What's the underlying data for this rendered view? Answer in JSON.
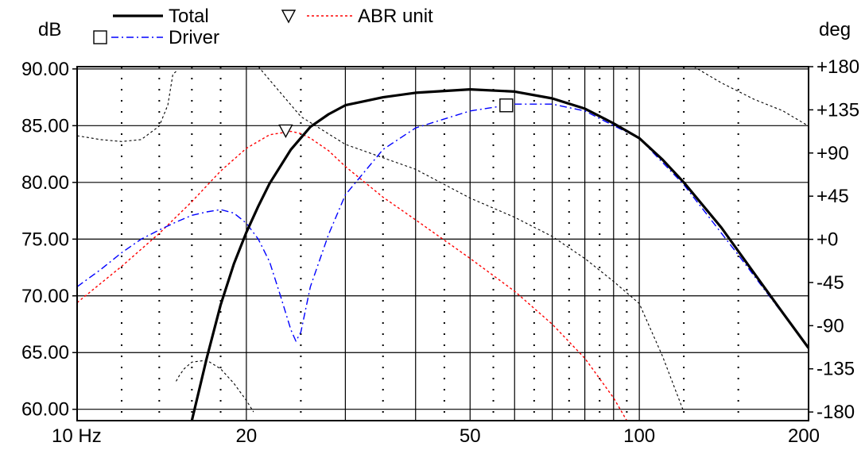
{
  "chart_data": {
    "type": "line",
    "x_scale": "log",
    "xlim": [
      10,
      200
    ],
    "ylim": [
      59,
      90.2
    ],
    "y2lim": [
      -189,
      180
    ],
    "left_unit": "dB",
    "right_unit": "deg",
    "x_ticks": [
      {
        "value": 10,
        "label": "10 Hz"
      },
      {
        "value": 20,
        "label": "20"
      },
      {
        "value": 50,
        "label": "50"
      },
      {
        "value": 100,
        "label": "100"
      },
      {
        "value": 200,
        "label": "200"
      }
    ],
    "y_ticks": [
      {
        "value": 90,
        "label": "90.00"
      },
      {
        "value": 85,
        "label": "85.00"
      },
      {
        "value": 80,
        "label": "80.00"
      },
      {
        "value": 75,
        "label": "75.00"
      },
      {
        "value": 70,
        "label": "70.00"
      },
      {
        "value": 65,
        "label": "65.00"
      },
      {
        "value": 60,
        "label": "60.00"
      }
    ],
    "y2_ticks": [
      {
        "value": 180,
        "label": "+180"
      },
      {
        "value": 135,
        "label": "+135"
      },
      {
        "value": 90,
        "label": "+90"
      },
      {
        "value": 45,
        "label": "+45"
      },
      {
        "value": 0,
        "label": "+0"
      },
      {
        "value": -45,
        "label": "-45"
      },
      {
        "value": -90,
        "label": "-90"
      },
      {
        "value": -135,
        "label": "-135"
      },
      {
        "value": -180,
        "label": "-180"
      }
    ],
    "grid": true,
    "legend": {
      "placement": "top",
      "entries": [
        {
          "label": "Total",
          "series": "total"
        },
        {
          "label": "Driver",
          "series": "driver"
        },
        {
          "label": "ABR unit",
          "series": "abr"
        }
      ]
    },
    "series": [
      {
        "id": "total",
        "name": "Total",
        "axis": "left",
        "color": "#000000",
        "style": "solid",
        "x": [
          16.0,
          17,
          18,
          19,
          20,
          21,
          22,
          24,
          26,
          28,
          30,
          35,
          40,
          50,
          60,
          70,
          80,
          90,
          100,
          110,
          120,
          140,
          160,
          180,
          200
        ],
        "y": [
          59,
          64.5,
          69.2,
          72.8,
          75.6,
          77.9,
          79.9,
          82.9,
          84.9,
          86.0,
          86.8,
          87.5,
          87.9,
          88.2,
          88.0,
          87.4,
          86.5,
          85.2,
          83.9,
          82.0,
          80.0,
          76.0,
          72.0,
          68.5,
          65.4
        ]
      },
      {
        "id": "driver",
        "name": "Driver",
        "axis": "left",
        "color": "#0000ff",
        "style": "dashdot",
        "marker": "square",
        "marker_x": 58,
        "x": [
          10,
          11,
          12,
          13,
          14,
          15,
          16,
          17,
          18,
          19,
          20,
          21,
          22,
          23,
          24,
          24.5,
          25,
          26,
          28,
          30,
          35,
          40,
          50,
          60,
          70,
          80,
          90,
          100,
          120,
          150,
          200
        ],
        "y": [
          70.8,
          72.3,
          73.8,
          75.0,
          75.8,
          76.5,
          77.1,
          77.4,
          77.6,
          77.3,
          76.4,
          75.0,
          73.0,
          70.0,
          67.0,
          66.0,
          66.8,
          70.8,
          75.4,
          78.9,
          82.9,
          84.8,
          86.3,
          86.9,
          86.9,
          86.3,
          85.0,
          83.9,
          79.8,
          73.6,
          65.4
        ]
      },
      {
        "id": "abr",
        "name": "ABR unit",
        "axis": "left",
        "color": "#ff0000",
        "style": "dotted",
        "marker": "triangle-down",
        "marker_x": 23.5,
        "x": [
          10,
          12,
          14,
          16,
          18,
          20,
          22,
          24,
          25,
          26,
          28,
          30,
          35,
          40,
          50,
          60,
          70,
          80,
          90,
          95
        ],
        "y": [
          69.4,
          72.6,
          75.5,
          78.3,
          81.0,
          83.0,
          84.2,
          84.5,
          84.3,
          83.9,
          82.8,
          81.4,
          78.7,
          76.7,
          73.3,
          70.4,
          67.5,
          64.5,
          61.0,
          59.0
        ]
      },
      {
        "id": "phase",
        "axis": "right",
        "color": "#000000",
        "style": "dotted-thin",
        "segments": [
          {
            "x": [
              10,
              11,
              12,
              13,
              14,
              14.5,
              14.8,
              15.0
            ],
            "y": [
              108,
              104,
              102,
              104,
              118,
              140,
              172,
              175
            ]
          },
          {
            "x": [
              15.0,
              15.2,
              15.5,
              16,
              17,
              18,
              19,
              20,
              20.6
            ],
            "y": [
              -148,
              -142,
              -135,
              -128,
              -126,
              -135,
              -150,
              -168,
              -180
            ]
          },
          {
            "x": [
              21.0,
              25,
              30,
              40,
              50,
              60,
              70,
              80,
              90,
              100,
              110,
              120
            ],
            "y": [
              180,
              128,
              99,
              73,
              43,
              23,
              3,
              -20,
              -44,
              -67,
              -122,
              -180
            ]
          },
          {
            "x": [
              125,
              140,
              160,
              180,
              200
            ],
            "y": [
              180,
              163,
              146,
              134,
              118
            ]
          }
        ]
      }
    ]
  }
}
